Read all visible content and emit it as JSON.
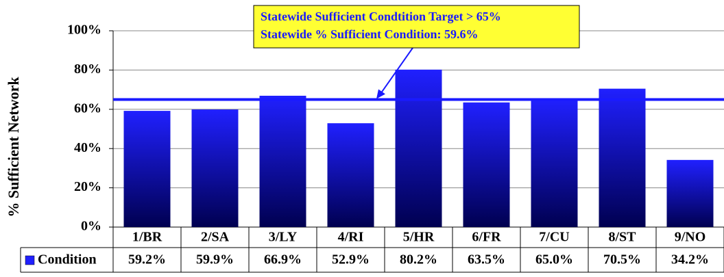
{
  "chart_data": {
    "type": "bar",
    "y_axis_label": "% Sufficient Network",
    "categories": [
      "1/BR",
      "2/SA",
      "3/LY",
      "4/RI",
      "5/HR",
      "6/FR",
      "7/CU",
      "8/ST",
      "9/NO"
    ],
    "series": [
      {
        "name": "Condition",
        "color": "#2020ff",
        "values": [
          59.2,
          59.9,
          66.9,
          52.9,
          80.2,
          63.5,
          65,
          70.5,
          34.2
        ],
        "value_labels": [
          "59.2%",
          "59.9%",
          "66.9%",
          "52.9%",
          "80.2%",
          "63.5%",
          "65.0%",
          "70.5%",
          "34.2%"
        ]
      }
    ],
    "ylim": [
      0,
      100
    ],
    "yticks": [
      {
        "value": 0,
        "label": "0%"
      },
      {
        "value": 20,
        "label": "20%"
      },
      {
        "value": 40,
        "label": "40%"
      },
      {
        "value": 60,
        "label": "60%"
      },
      {
        "value": 80,
        "label": "80%"
      },
      {
        "value": 100,
        "label": "100%"
      }
    ],
    "target_line": 65,
    "annotations": [
      "Statewide Sufficient Condtition Target > 65%",
      "Statewide % Sufficient Condition: 59.6%"
    ],
    "grid": true
  }
}
